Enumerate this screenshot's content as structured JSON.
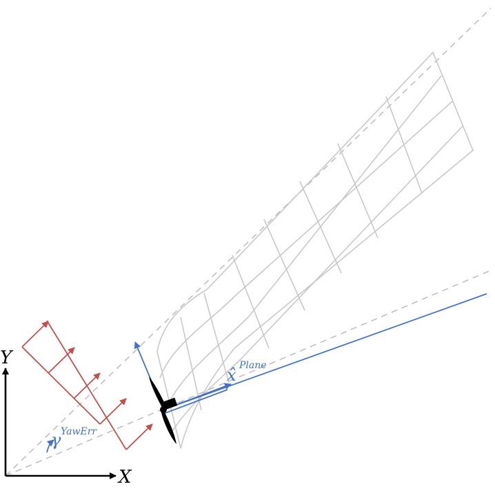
{
  "labels": {
    "axis_x": "X",
    "axis_y": "Y",
    "yaw_symbol": "γ",
    "yaw_superscript": "YawErr",
    "plane_symbol": "x̂",
    "plane_superscript": "Plane"
  },
  "colors": {
    "wake_grid": "#c8c8c8",
    "guide_dashed": "#bfbfbf",
    "wind_arrows": "#c0504d",
    "plane_vectors": "#4472c4",
    "axes": "#000000",
    "turbine": "#000000"
  }
}
